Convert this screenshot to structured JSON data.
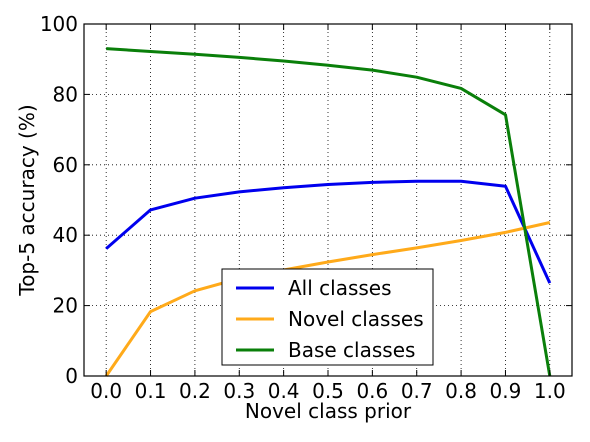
{
  "chart_data": {
    "type": "line",
    "xlabel": "Novel class prior",
    "ylabel": "Top-5 accuracy (%)",
    "xlim": [
      -0.05,
      1.05
    ],
    "ylim": [
      0,
      100
    ],
    "x": [
      0.0,
      0.1,
      0.2,
      0.3,
      0.4,
      0.5,
      0.6,
      0.7,
      0.8,
      0.9,
      1.0
    ],
    "x_ticks": [
      "0.0",
      "0.1",
      "0.2",
      "0.3",
      "0.4",
      "0.5",
      "0.6",
      "0.7",
      "0.8",
      "0.9",
      "1.0"
    ],
    "y_ticks": [
      "0",
      "20",
      "40",
      "60",
      "80",
      "100"
    ],
    "grid": true,
    "legend_position": "lower-center",
    "series": [
      {
        "name": "All classes",
        "color": "#0000ee",
        "values": [
          36.2,
          47.2,
          50.5,
          52.3,
          53.5,
          54.4,
          55.0,
          55.3,
          55.3,
          53.9,
          26.4
        ]
      },
      {
        "name": "Novel classes",
        "color": "#ffaa1a",
        "values": [
          0.0,
          18.3,
          24.2,
          27.7,
          30.1,
          32.4,
          34.5,
          36.4,
          38.5,
          40.8,
          43.6
        ]
      },
      {
        "name": "Base classes",
        "color": "#0a7f0a",
        "values": [
          93.0,
          92.2,
          91.4,
          90.5,
          89.5,
          88.3,
          86.9,
          84.9,
          81.7,
          74.2,
          0.0
        ]
      }
    ]
  }
}
